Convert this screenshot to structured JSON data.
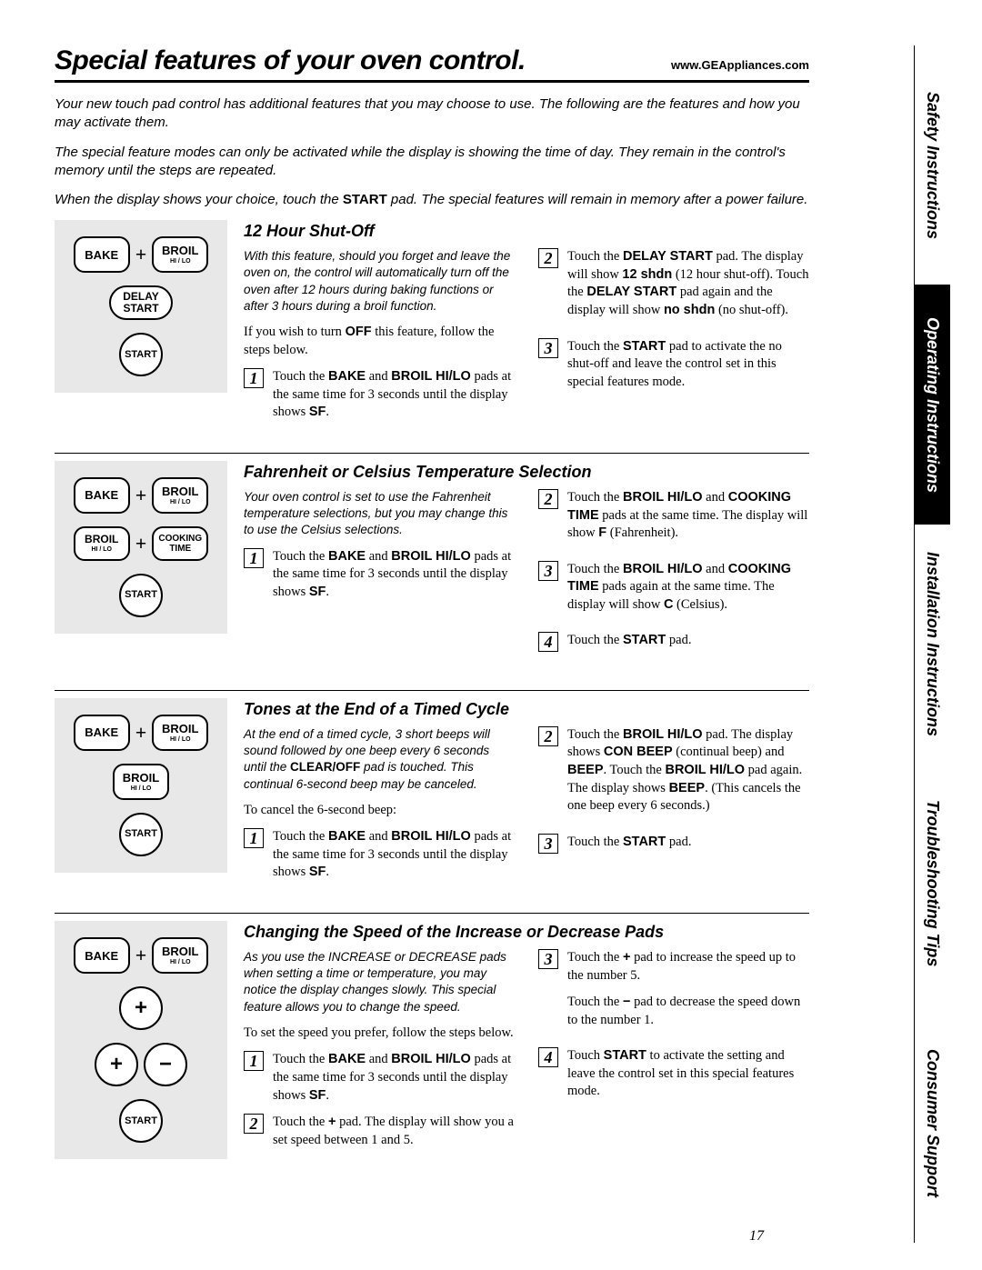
{
  "header": {
    "title": "Special features of your oven control.",
    "url": "www.GEAppliances.com"
  },
  "intro": [
    "Your new touch pad control has additional features that you may choose to use. The following are the features and how you may activate them.",
    "The special feature modes can only be activated while the display is showing the time of day. They remain in the control's memory until the steps are repeated.",
    "When the display shows your choice, touch the <strong>START</strong> pad. The special features will remain in memory after a power failure."
  ],
  "pads": {
    "bake": "BAKE",
    "broil": "BROIL",
    "broil_sub": "HI / LO",
    "delay_start": "DELAY\nSTART",
    "start": "START",
    "cooking_time": "COOKING\nTIME",
    "plus": "+",
    "minus": "−"
  },
  "sections": [
    {
      "title": "12 Hour Shut-Off",
      "intro_italic": "With this feature, should you forget and leave the oven on, the control will automatically turn off the oven after 12 hours during baking functions or after 3 hours during a broil function.",
      "intro_plain": "If you wish to turn <strong>OFF</strong> this feature, follow the steps below.",
      "left_steps": [
        "Touch the <strong>BAKE</strong> and <strong>BROIL HI/LO</strong> pads at the same time for 3 seconds until the display shows <strong>SF</strong>."
      ],
      "right_steps": [
        "Touch the <strong>DELAY START</strong> pad. The display will show <strong>12 shdn</strong> (12 hour shut-off). Touch the <strong>DELAY START</strong> pad again and the display will show <strong>no shdn</strong> (no shut-off).",
        "Touch the <strong>START</strong> pad to activate the no shut-off and leave the control set in this special features mode."
      ],
      "right_start": 2,
      "diagram": "shut_off"
    },
    {
      "title": "Fahrenheit or Celsius Temperature Selection",
      "intro_italic": "Your oven control is set to use the Fahrenheit temperature selections, but you may change this to use the Celsius selections.",
      "intro_plain": "",
      "left_steps": [
        "Touch the <strong>BAKE</strong> and <strong>BROIL HI/LO</strong> pads at the same time for 3 seconds until the display shows <strong>SF</strong>."
      ],
      "right_steps": [
        "Touch the <strong>BROIL HI/LO</strong> and <strong>COOKING TIME</strong> pads at the same time. The display will show <strong>F</strong> (Fahrenheit).",
        "Touch the <strong>BROIL HI/LO</strong> and <strong>COOKING TIME</strong> pads again at the same time. The display will show <strong>C</strong> (Celsius).",
        "Touch the <strong>START</strong> pad."
      ],
      "right_start": 2,
      "diagram": "temp"
    },
    {
      "title": "Tones at the End of a Timed Cycle",
      "intro_italic": "At the end of a timed cycle, 3 short beeps will sound followed by one beep every 6 seconds until the <strong>CLEAR/OFF</strong> pad is touched. This continual 6-second beep may be canceled.",
      "intro_plain": "To cancel the 6-second beep:",
      "left_steps": [
        "Touch the <strong>BAKE</strong> and <strong>BROIL HI/LO</strong> pads at the same time for 3 seconds until the display shows <strong>SF</strong>."
      ],
      "right_steps": [
        "Touch the <strong>BROIL HI/LO</strong> pad. The display shows <strong>CON BEEP</strong> (continual beep) and <strong>BEEP</strong>. Touch the <strong>BROIL HI/LO</strong> pad again. The display shows <strong>BEEP</strong>. (This cancels the one beep every 6 seconds.)",
        "Touch the <strong>START</strong> pad."
      ],
      "right_start": 2,
      "diagram": "tones"
    },
    {
      "title": "Changing the Speed of the Increase or Decrease Pads",
      "intro_italic": "As you use the INCREASE or DECREASE pads when setting a time or temperature, you may notice the display changes slowly. This special feature allows you to change the speed.",
      "intro_plain": "To set the speed you prefer, follow the steps below.",
      "left_steps": [
        "Touch the <strong>BAKE</strong> and <strong>BROIL HI/LO</strong> pads at the same time for 3 seconds until the display shows <strong>SF</strong>.",
        "Touch the <strong>+</strong> pad. The display will show you a set speed between 1 and 5."
      ],
      "right_steps": [
        "Touch the <strong>+</strong> pad to increase the speed up to the number 5.\n\nTouch the <strong>−</strong> pad to decrease the speed down to the number 1.",
        "Touch <strong>START</strong> to activate the setting and leave the control set in this special features mode."
      ],
      "right_start": 3,
      "diagram": "speed"
    }
  ],
  "side_tabs": [
    {
      "label": "Safety Instructions",
      "active": false
    },
    {
      "label": "Operating Instructions",
      "active": true
    },
    {
      "label": "Installation Instructions",
      "active": false
    },
    {
      "label": "Troubleshooting Tips",
      "active": false
    },
    {
      "label": "Consumer Support",
      "active": false
    }
  ],
  "page_number": "17"
}
